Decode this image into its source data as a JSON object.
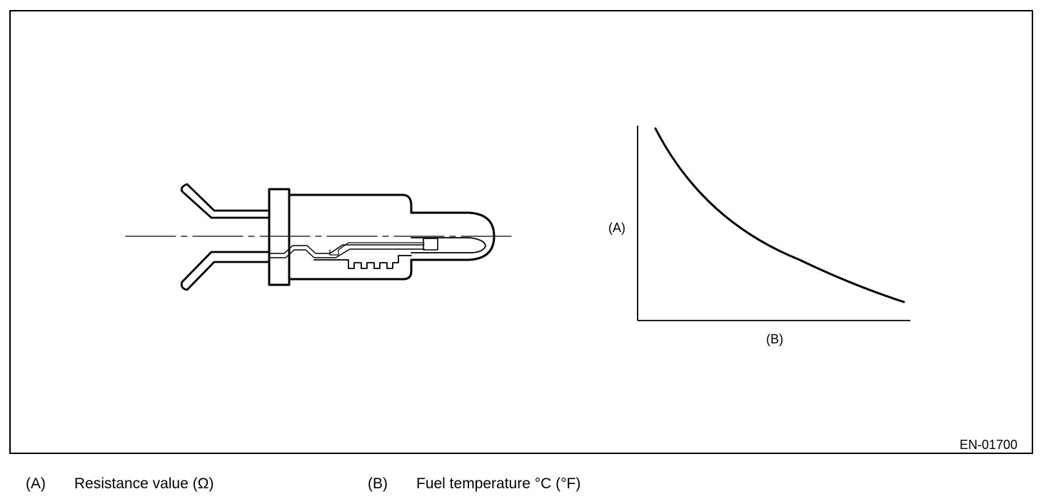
{
  "figure": {
    "code": "EN-01700",
    "graph": {
      "y_label": "(A)",
      "x_label": "(B)"
    }
  },
  "legend": [
    {
      "key": "(A)",
      "text": "Resistance value (Ω)"
    },
    {
      "key": "(B)",
      "text": "Fuel temperature °C (°F)"
    }
  ]
}
